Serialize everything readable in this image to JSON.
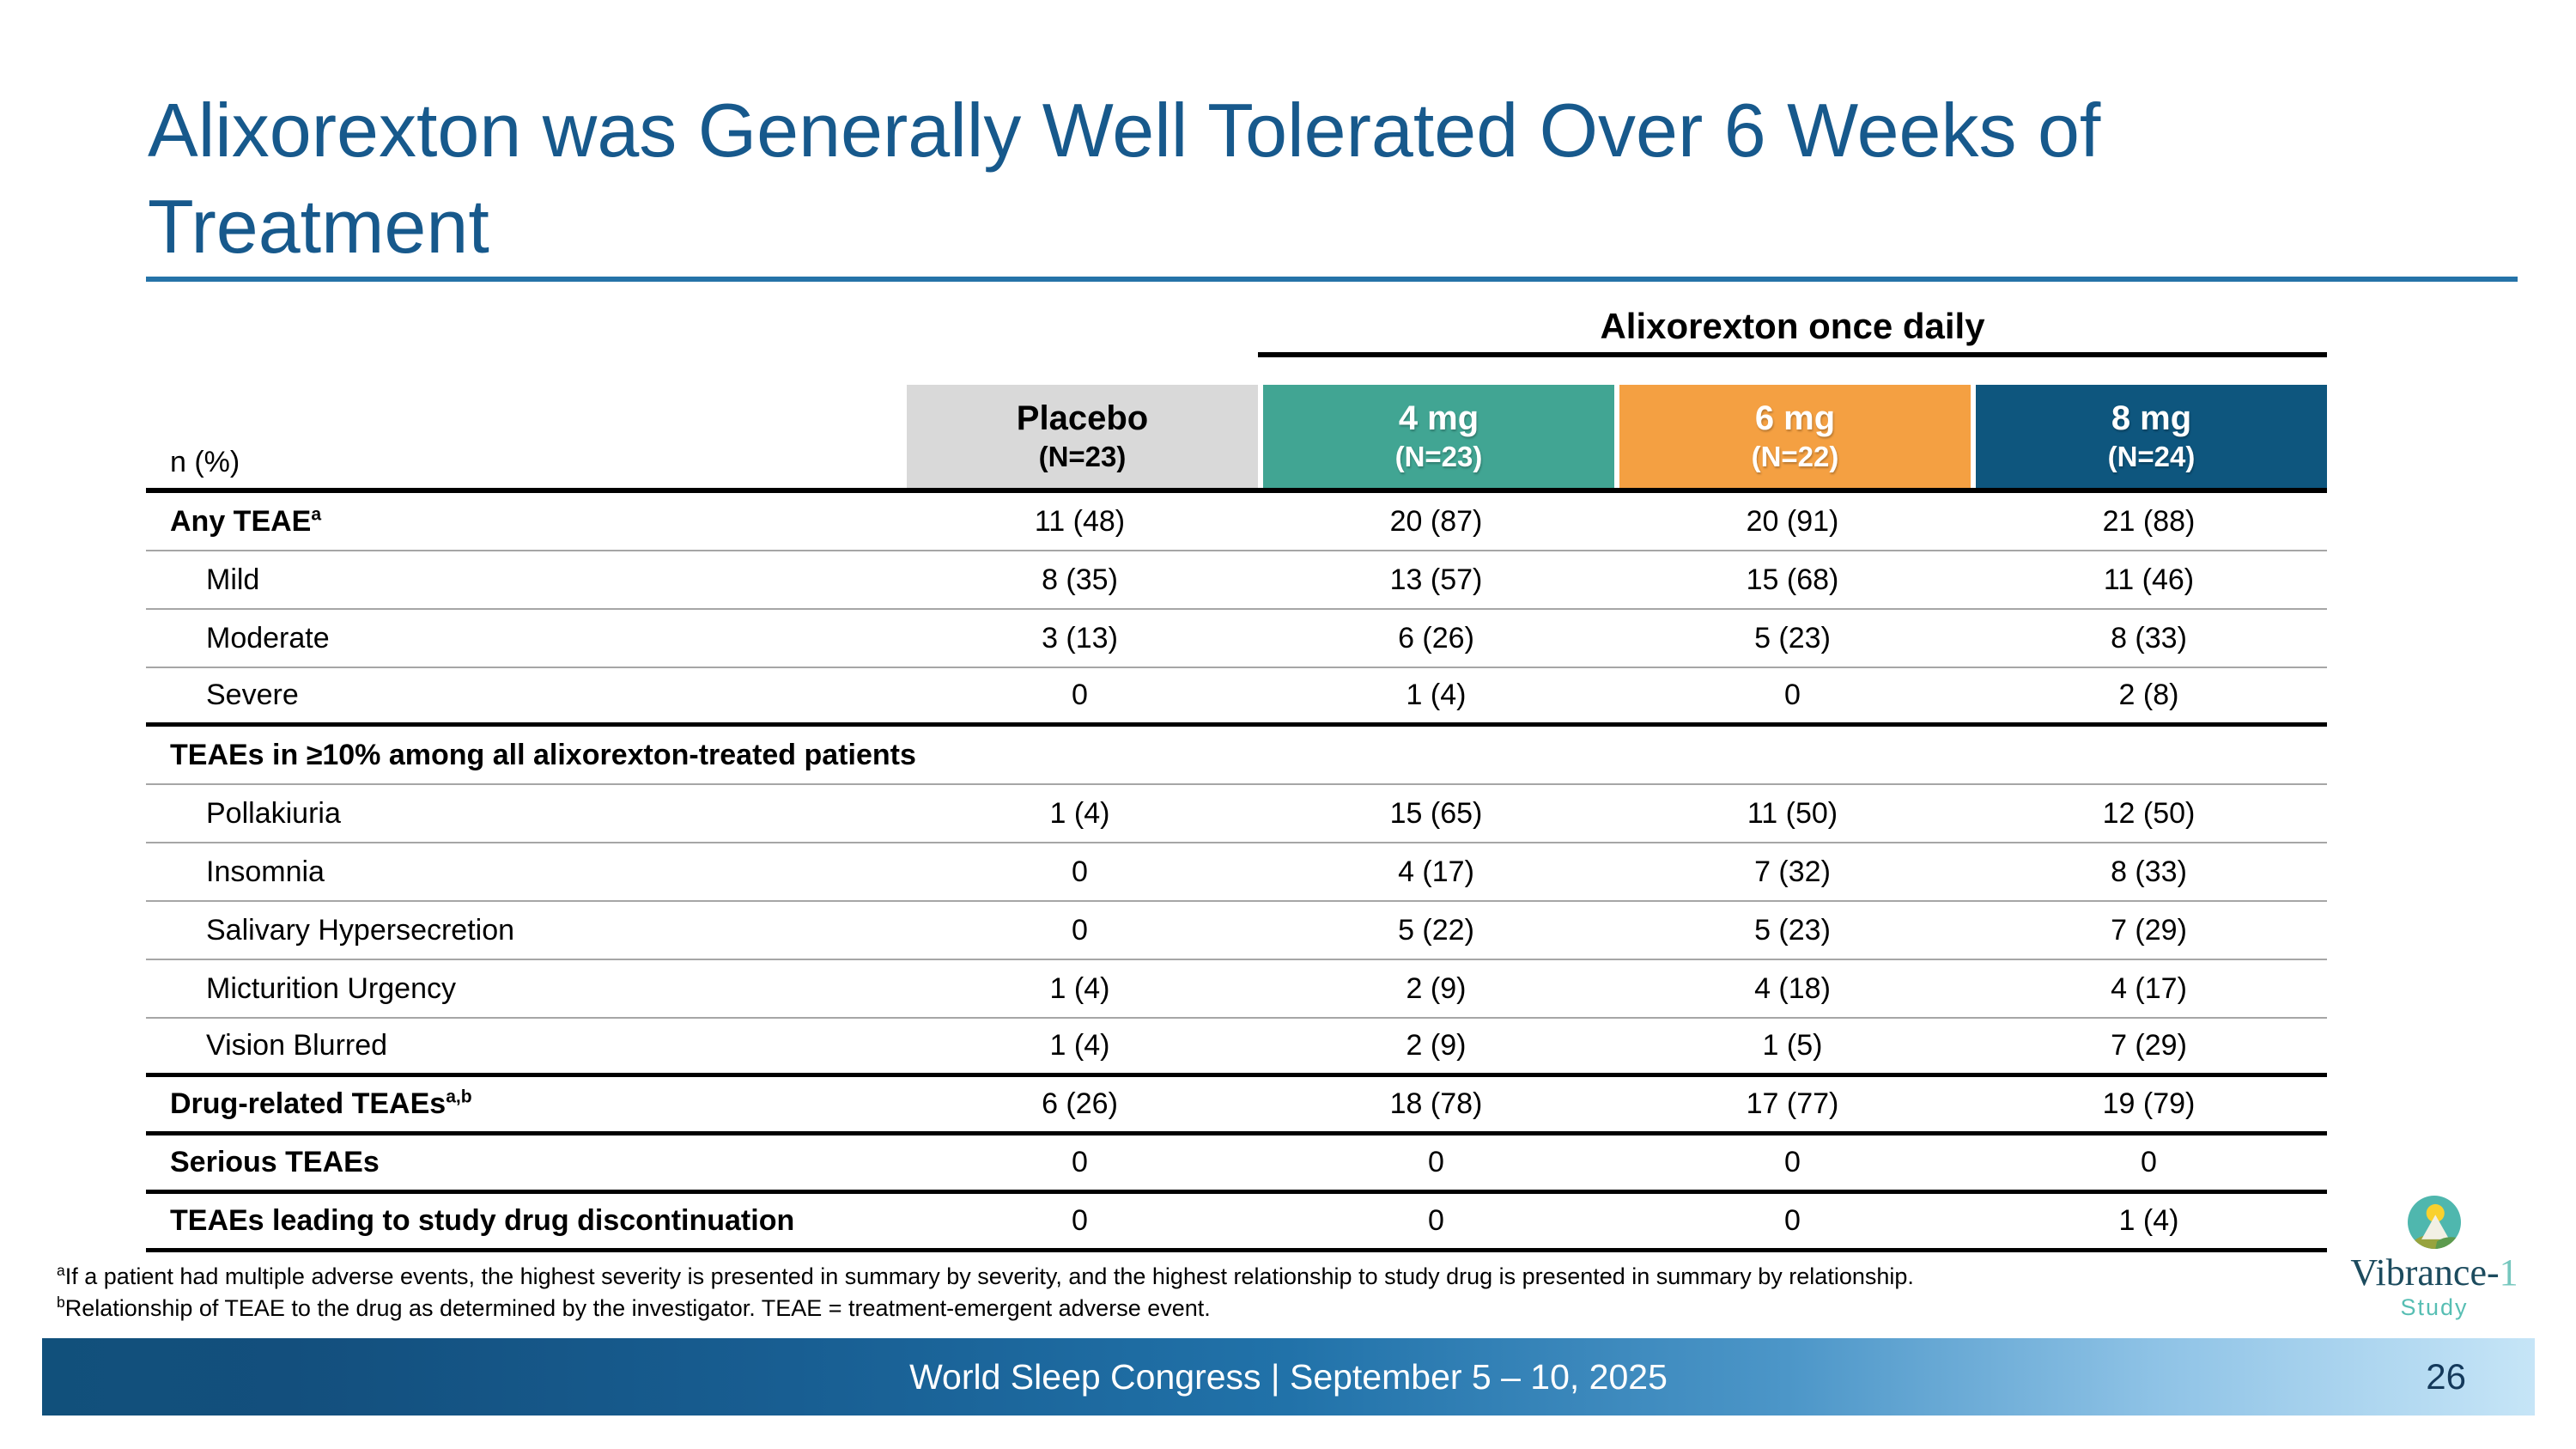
{
  "slide": {
    "title": "Alixorexton was Generally Well Tolerated Over 6 Weeks of Treatment",
    "footer_text": "World Sleep Congress | September 5 – 10, 2025",
    "page_number": "26"
  },
  "table": {
    "group_header": "Alixorexton once daily",
    "row_label_header": "n (%)",
    "columns": [
      {
        "label": "Placebo",
        "n": "(N=23)",
        "bg": "#D9D9D9",
        "fg": "#000000"
      },
      {
        "label": "4 mg",
        "n": "(N=23)",
        "bg": "#41A593",
        "fg": "#FFFFFF"
      },
      {
        "label": "6 mg",
        "n": "(N=22)",
        "bg": "#F4A042",
        "fg": "#FFFFFF"
      },
      {
        "label": "8 mg",
        "n": "(N=24)",
        "bg": "#0E567E",
        "fg": "#FFFFFF"
      }
    ],
    "rows": [
      {
        "type": "bold",
        "label": "Any TEAE",
        "sup": "a",
        "values": [
          "11 (48)",
          "20 (87)",
          "20 (91)",
          "21 (88)"
        ],
        "separator_below": "thin"
      },
      {
        "type": "indent",
        "label": "Mild",
        "sup": "",
        "values": [
          "8 (35)",
          "13 (57)",
          "15 (68)",
          "11 (46)"
        ],
        "separator_below": "thin"
      },
      {
        "type": "indent",
        "label": "Moderate",
        "sup": "",
        "values": [
          "3 (13)",
          "6 (26)",
          "5 (23)",
          "8 (33)"
        ],
        "separator_below": "thin"
      },
      {
        "type": "indent",
        "label": "Severe",
        "sup": "",
        "values": [
          "0",
          "1 (4)",
          "0",
          "2 (8)"
        ],
        "separator_below": "thick"
      },
      {
        "type": "section",
        "label": "TEAEs in ≥10% among all alixorexton-treated patients",
        "sup": "",
        "values": [],
        "separator_below": "thin"
      },
      {
        "type": "indent",
        "label": "Pollakiuria",
        "sup": "",
        "values": [
          "1 (4)",
          "15 (65)",
          "11 (50)",
          "12 (50)"
        ],
        "separator_below": "thin"
      },
      {
        "type": "indent",
        "label": "Insomnia",
        "sup": "",
        "values": [
          "0",
          "4 (17)",
          "7 (32)",
          "8 (33)"
        ],
        "separator_below": "thin"
      },
      {
        "type": "indent",
        "label": "Salivary Hypersecretion",
        "sup": "",
        "values": [
          "0",
          "5 (22)",
          "5 (23)",
          "7 (29)"
        ],
        "separator_below": "thin"
      },
      {
        "type": "indent",
        "label": "Micturition Urgency",
        "sup": "",
        "values": [
          "1 (4)",
          "2 (9)",
          "4 (18)",
          "4 (17)"
        ],
        "separator_below": "thin"
      },
      {
        "type": "indent",
        "label": "Vision Blurred",
        "sup": "",
        "values": [
          "1 (4)",
          "2 (9)",
          "1 (5)",
          "7 (29)"
        ],
        "separator_below": "thick"
      },
      {
        "type": "bold",
        "label": "Drug-related TEAEs",
        "sup": "a,b",
        "values": [
          "6 (26)",
          "18 (78)",
          "17 (77)",
          "19 (79)"
        ],
        "separator_below": "thick"
      },
      {
        "type": "bold",
        "label": "Serious TEAEs",
        "sup": "",
        "values": [
          "0",
          "0",
          "0",
          "0"
        ],
        "separator_below": "thick"
      },
      {
        "type": "bold",
        "label": "TEAEs leading to study drug discontinuation",
        "sup": "",
        "values": [
          "0",
          "0",
          "0",
          "1 (4)"
        ],
        "separator_below": "thick"
      }
    ]
  },
  "footnotes": [
    {
      "sup": "a",
      "text": "If a patient had multiple adverse events, the highest severity is presented in summary by severity, and the highest relationship to study drug is presented in summary by relationship."
    },
    {
      "sup": "b",
      "text": "Relationship of TEAE to the drug as determined by the investigator. TEAE = treatment-emergent adverse event."
    }
  ],
  "logo": {
    "name_main": "Vibrance-",
    "name_suffix": "1",
    "subtitle": "Study"
  },
  "colors": {
    "title": "#17598C",
    "accent_rule": "#2573A8",
    "footer_dark": "#11507B",
    "footer_light": "#C6E5F7",
    "page_number": "#14395B"
  }
}
